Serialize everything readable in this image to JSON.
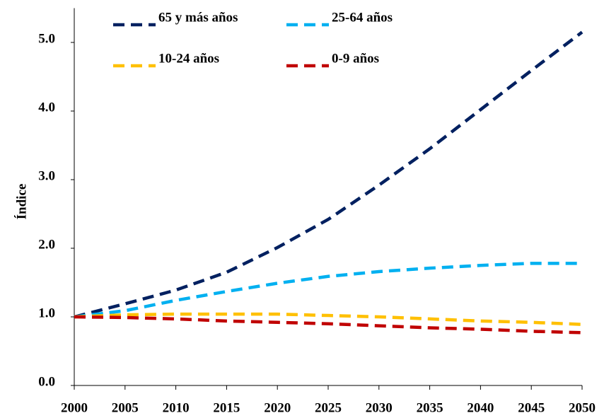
{
  "chart_data": {
    "type": "line",
    "y_label": "Índice",
    "x": [
      2000,
      2005,
      2010,
      2015,
      2020,
      2025,
      2030,
      2035,
      2040,
      2045,
      2050
    ],
    "series": [
      {
        "name": "65 y más años",
        "color": "#002060",
        "values": [
          1.0,
          1.19,
          1.39,
          1.65,
          2.01,
          2.42,
          2.92,
          3.45,
          4.02,
          4.59,
          5.15
        ]
      },
      {
        "name": "25-64 años",
        "color": "#00b0f0",
        "values": [
          1.0,
          1.09,
          1.24,
          1.37,
          1.49,
          1.59,
          1.66,
          1.71,
          1.75,
          1.78,
          1.78
        ]
      },
      {
        "name": "10-24 años",
        "color": "#ffc000",
        "values": [
          1.0,
          1.03,
          1.04,
          1.04,
          1.04,
          1.02,
          1.0,
          0.97,
          0.94,
          0.92,
          0.89
        ]
      },
      {
        "name": "0-9 años",
        "color": "#c00000",
        "values": [
          1.0,
          0.99,
          0.97,
          0.94,
          0.92,
          0.9,
          0.87,
          0.84,
          0.82,
          0.79,
          0.77
        ]
      }
    ],
    "xlim": [
      2000,
      2050
    ],
    "xticks": [
      2000,
      2005,
      2010,
      2015,
      2020,
      2025,
      2030,
      2035,
      2040,
      2045,
      2050
    ],
    "ylim": [
      0,
      5.5
    ],
    "yticks": [
      {
        "value": 0,
        "label": "0.0"
      },
      {
        "value": 1,
        "label": "1.0"
      },
      {
        "value": 2,
        "label": "2.0"
      },
      {
        "value": 3,
        "label": "3.0"
      },
      {
        "value": 4,
        "label": "4.0"
      },
      {
        "value": 5,
        "label": "5.0"
      }
    ],
    "dashed": true
  }
}
